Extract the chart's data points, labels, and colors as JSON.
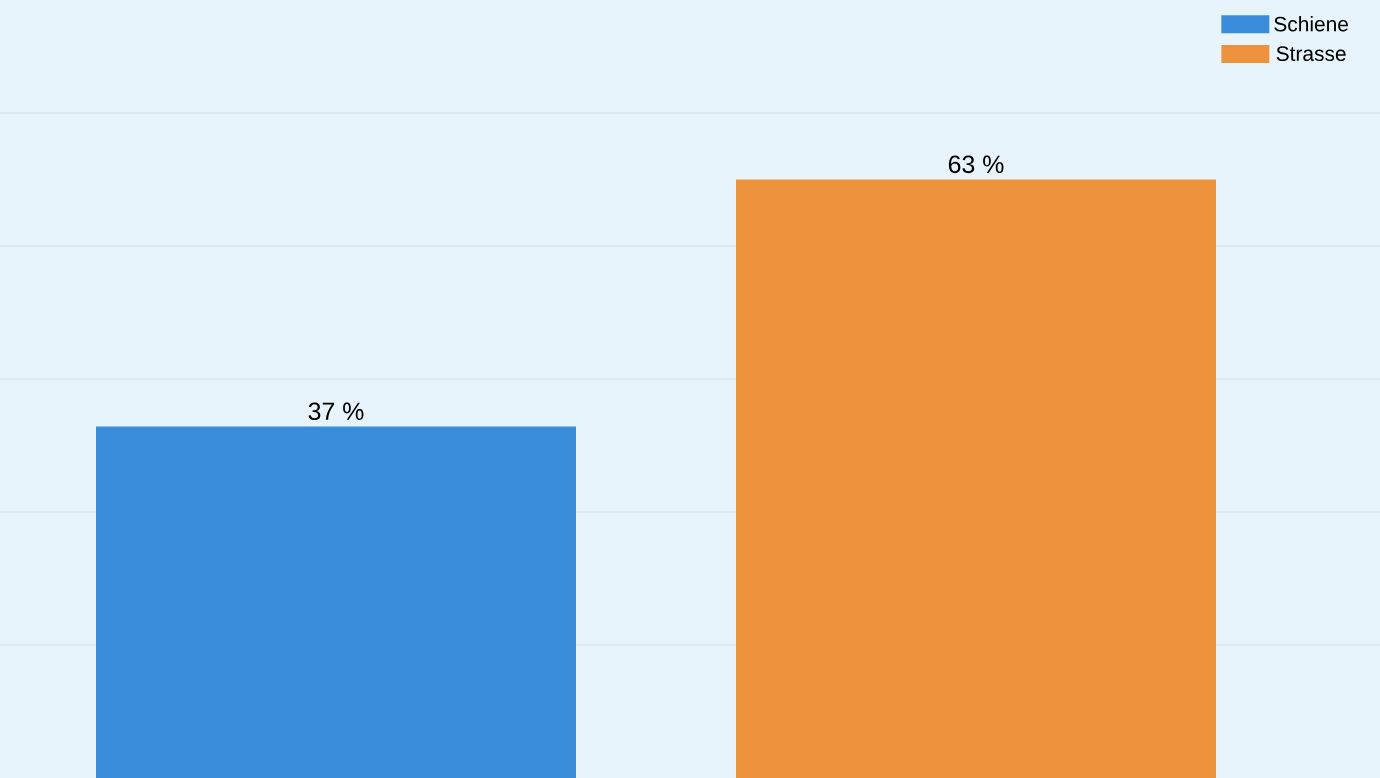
{
  "chart_data": {
    "type": "bar",
    "categories": [
      null
    ],
    "series": [
      {
        "name": "Schiene",
        "color": "#3a8ddb",
        "values": [
          37
        ],
        "value_labels": [
          "37 %"
        ]
      },
      {
        "name": "Strasse",
        "color": "#ec933b",
        "values": [
          63
        ],
        "value_labels": [
          "63 %"
        ]
      }
    ],
    "yticks": [
      {
        "value": 14,
        "label": null
      },
      {
        "value": 28,
        "label": null
      },
      {
        "value": 42,
        "label": null
      },
      {
        "value": 56,
        "label": null
      },
      {
        "value": 70,
        "label": null
      }
    ],
    "grid": "y",
    "legend": "top right"
  }
}
